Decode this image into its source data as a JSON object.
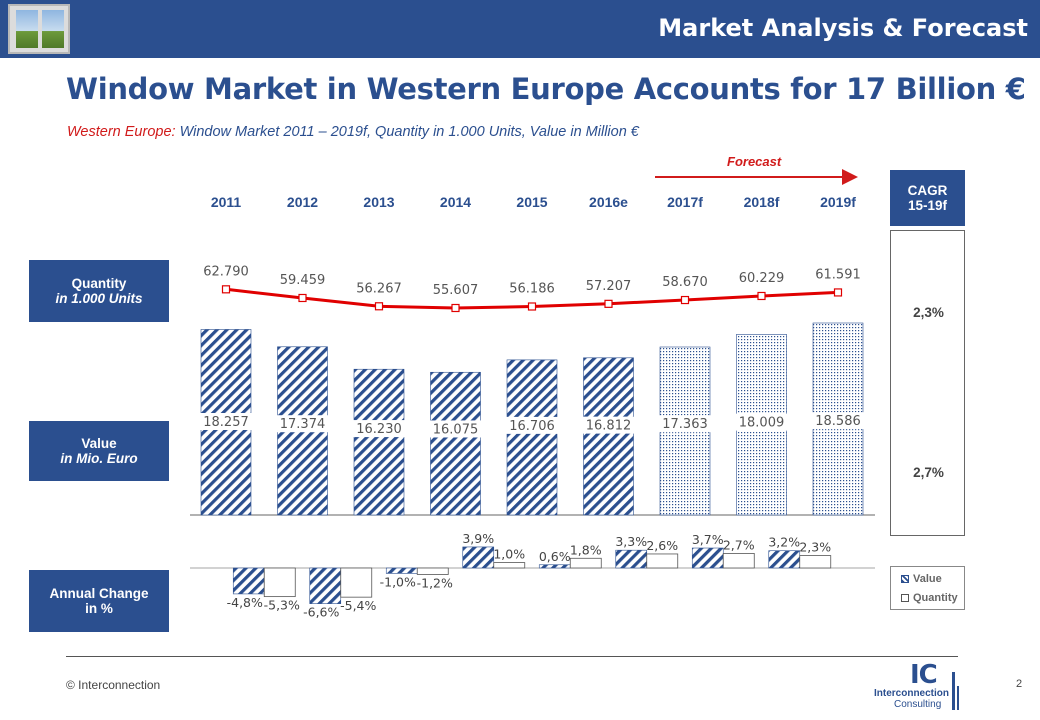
{
  "header": {
    "title": "Market Analysis & Forecast"
  },
  "heading": "Window Market in Western Europe Accounts for 17 Billion €",
  "subtitle": {
    "region": "Western Europe:",
    "rest": " Window Market 2011 – 2019f, Quantity in 1.000 Units, Value in Million €"
  },
  "forecast_label": "Forecast",
  "side_labels": {
    "quantity": {
      "l1": "Quantity",
      "l2": "in 1.000 Units"
    },
    "value": {
      "l1": "Value",
      "l2": "in Mio. Euro"
    },
    "change": {
      "l1": "Annual Change",
      "l2": "in %"
    }
  },
  "cagr": {
    "title_l1": "CAGR",
    "title_l2": "15-19f",
    "quantity": "2,3%",
    "value": "2,7%"
  },
  "legend": {
    "value": "Value",
    "quantity": "Quantity"
  },
  "footer": {
    "copyright": "© Interconnection",
    "page": "2",
    "logo_ic": "IC",
    "logo_l1": "Interconnection",
    "logo_l2": "Consulting"
  },
  "colors": {
    "brand": "#2b4f8f",
    "accent": "#d11b1b",
    "bar_hatch": "#2b4f8f"
  },
  "chart_data": {
    "type": "bar",
    "categories": [
      "2011",
      "2012",
      "2013",
      "2014",
      "2015",
      "2016e",
      "2017f",
      "2018f",
      "2019f"
    ],
    "forecast_from": "2017f",
    "value_series": {
      "name": "Value",
      "values": [
        18257,
        17374,
        16230,
        16075,
        16706,
        16812,
        17363,
        18009,
        18586
      ],
      "labels": [
        "18.257",
        "17.374",
        "16.230",
        "16.075",
        "16.706",
        "16.812",
        "17.363",
        "18.009",
        "18.586"
      ]
    },
    "quantity_series": {
      "name": "Quantity",
      "type": "line",
      "values": [
        62790,
        59459,
        56267,
        55607,
        56186,
        57207,
        58670,
        60229,
        61591
      ],
      "labels": [
        "62.790",
        "59.459",
        "56.267",
        "55.607",
        "56.186",
        "57.207",
        "58.670",
        "60.229",
        "61.591"
      ]
    },
    "annual_change": {
      "type": "bar",
      "value_change": [
        -4.8,
        -6.6,
        -1.0,
        3.9,
        0.6,
        3.3,
        3.7,
        3.2
      ],
      "value_change_labels": [
        "-4,8%",
        "-6,6%",
        "-1,0%",
        "3,9%",
        "0,6%",
        "3,3%",
        "3,7%",
        "3,2%"
      ],
      "quantity_change": [
        -5.3,
        -5.4,
        -1.2,
        1.0,
        1.8,
        2.6,
        2.7,
        2.3
      ],
      "quantity_change_labels": [
        "-5,3%",
        "-5,4%",
        "-1,2%",
        "1,0%",
        "1,8%",
        "2,6%",
        "2,7%",
        "2,3%"
      ]
    }
  }
}
